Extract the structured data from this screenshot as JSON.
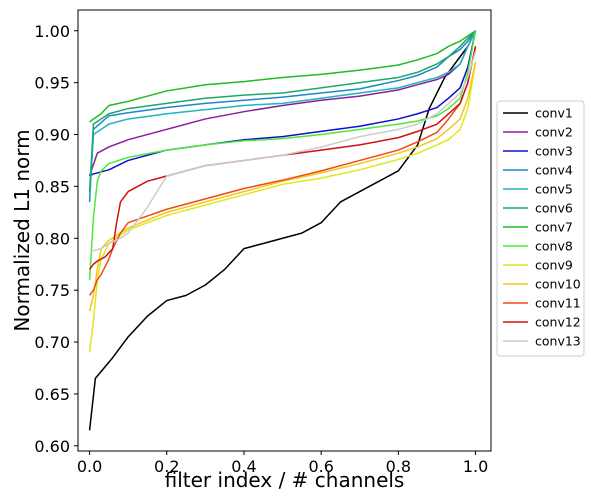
{
  "chart_data": {
    "type": "line",
    "xlabel": "filter index / # channels",
    "ylabel": "Normalized L1 norm",
    "xlim": [
      -0.03,
      1.04
    ],
    "ylim": [
      0.595,
      1.02
    ],
    "xticks": [
      0.0,
      0.2,
      0.4,
      0.6,
      0.8,
      1.0
    ],
    "xtick_labels": [
      "0.0",
      "0.2",
      "0.4",
      "0.6",
      "0.8",
      "1.0"
    ],
    "yticks": [
      0.6,
      0.65,
      0.7,
      0.75,
      0.8,
      0.85,
      0.9,
      0.95,
      1.0
    ],
    "ytick_labels": [
      "0.60",
      "0.65",
      "0.70",
      "0.75",
      "0.80",
      "0.85",
      "0.90",
      "0.95",
      "1.00"
    ],
    "grid": false,
    "legend_position": "right, outside plot",
    "series": [
      {
        "name": "conv1",
        "color": "#000000",
        "x": [
          0.0,
          0.015,
          0.06,
          0.1,
          0.15,
          0.2,
          0.25,
          0.3,
          0.35,
          0.4,
          0.45,
          0.5,
          0.55,
          0.6,
          0.65,
          0.7,
          0.75,
          0.8,
          0.85,
          0.88,
          0.9,
          0.92,
          0.95,
          0.98,
          1.0
        ],
        "y": [
          0.615,
          0.665,
          0.685,
          0.705,
          0.725,
          0.74,
          0.745,
          0.755,
          0.77,
          0.79,
          0.795,
          0.8,
          0.805,
          0.815,
          0.835,
          0.845,
          0.855,
          0.865,
          0.89,
          0.925,
          0.94,
          0.955,
          0.97,
          0.985,
          1.0
        ]
      },
      {
        "name": "conv2",
        "color": "#8a1f9e",
        "x": [
          0.0,
          0.02,
          0.05,
          0.1,
          0.2,
          0.3,
          0.4,
          0.5,
          0.6,
          0.7,
          0.8,
          0.85,
          0.9,
          0.93,
          0.96,
          0.98,
          1.0
        ],
        "y": [
          0.86,
          0.882,
          0.888,
          0.895,
          0.905,
          0.915,
          0.922,
          0.928,
          0.933,
          0.937,
          0.943,
          0.948,
          0.953,
          0.958,
          0.968,
          0.985,
          1.0
        ]
      },
      {
        "name": "conv3",
        "color": "#1010c8",
        "x": [
          0.0,
          0.01,
          0.05,
          0.1,
          0.2,
          0.3,
          0.4,
          0.5,
          0.6,
          0.7,
          0.8,
          0.85,
          0.9,
          0.93,
          0.96,
          0.98,
          1.0
        ],
        "y": [
          0.86,
          0.862,
          0.866,
          0.875,
          0.885,
          0.89,
          0.895,
          0.898,
          0.903,
          0.908,
          0.915,
          0.92,
          0.926,
          0.935,
          0.945,
          0.965,
          1.0
        ]
      },
      {
        "name": "conv4",
        "color": "#1f86c9",
        "x": [
          0.0,
          0.01,
          0.05,
          0.1,
          0.2,
          0.3,
          0.4,
          0.5,
          0.6,
          0.7,
          0.8,
          0.85,
          0.9,
          0.93,
          0.96,
          0.98,
          1.0
        ],
        "y": [
          0.835,
          0.905,
          0.918,
          0.921,
          0.926,
          0.93,
          0.933,
          0.936,
          0.94,
          0.944,
          0.952,
          0.957,
          0.965,
          0.975,
          0.982,
          0.99,
          1.0
        ]
      },
      {
        "name": "conv5",
        "color": "#20b3c0",
        "x": [
          0.0,
          0.01,
          0.05,
          0.1,
          0.2,
          0.3,
          0.4,
          0.5,
          0.6,
          0.7,
          0.8,
          0.85,
          0.9,
          0.93,
          0.96,
          0.98,
          1.0
        ],
        "y": [
          0.84,
          0.9,
          0.91,
          0.915,
          0.92,
          0.924,
          0.928,
          0.93,
          0.935,
          0.94,
          0.945,
          0.95,
          0.955,
          0.96,
          0.968,
          0.985,
          1.0
        ]
      },
      {
        "name": "conv6",
        "color": "#1aa96a",
        "x": [
          0.0,
          0.01,
          0.05,
          0.1,
          0.2,
          0.3,
          0.4,
          0.5,
          0.6,
          0.7,
          0.8,
          0.85,
          0.9,
          0.93,
          0.96,
          0.98,
          1.0
        ],
        "y": [
          0.845,
          0.91,
          0.92,
          0.925,
          0.93,
          0.935,
          0.938,
          0.94,
          0.945,
          0.95,
          0.955,
          0.96,
          0.968,
          0.975,
          0.985,
          0.993,
          1.0
        ]
      },
      {
        "name": "conv7",
        "color": "#22bb22",
        "x": [
          0.0,
          0.01,
          0.03,
          0.05,
          0.1,
          0.2,
          0.3,
          0.4,
          0.5,
          0.6,
          0.7,
          0.8,
          0.85,
          0.9,
          0.93,
          0.96,
          0.98,
          1.0
        ],
        "y": [
          0.912,
          0.915,
          0.92,
          0.928,
          0.932,
          0.942,
          0.948,
          0.951,
          0.955,
          0.958,
          0.962,
          0.967,
          0.972,
          0.978,
          0.985,
          0.99,
          0.995,
          1.0
        ]
      },
      {
        "name": "conv8",
        "color": "#4ce83a",
        "x": [
          0.0,
          0.01,
          0.02,
          0.03,
          0.05,
          0.1,
          0.2,
          0.3,
          0.4,
          0.5,
          0.6,
          0.7,
          0.8,
          0.85,
          0.9,
          0.93,
          0.96,
          0.98,
          1.0
        ],
        "y": [
          0.76,
          0.82,
          0.855,
          0.865,
          0.872,
          0.878,
          0.885,
          0.89,
          0.894,
          0.896,
          0.9,
          0.905,
          0.91,
          0.913,
          0.918,
          0.925,
          0.935,
          0.96,
          1.0
        ]
      },
      {
        "name": "conv9",
        "color": "#dfe81a",
        "x": [
          0.0,
          0.01,
          0.02,
          0.03,
          0.05,
          0.1,
          0.2,
          0.3,
          0.4,
          0.5,
          0.6,
          0.7,
          0.8,
          0.85,
          0.9,
          0.93,
          0.96,
          0.98,
          1.0
        ],
        "y": [
          0.69,
          0.72,
          0.76,
          0.78,
          0.795,
          0.808,
          0.822,
          0.832,
          0.842,
          0.852,
          0.858,
          0.866,
          0.876,
          0.882,
          0.89,
          0.895,
          0.905,
          0.925,
          0.97
        ]
      },
      {
        "name": "conv10",
        "color": "#f5c71c",
        "x": [
          0.0,
          0.01,
          0.02,
          0.03,
          0.05,
          0.1,
          0.2,
          0.3,
          0.4,
          0.5,
          0.6,
          0.7,
          0.8,
          0.85,
          0.9,
          0.93,
          0.96,
          0.98,
          1.0
        ],
        "y": [
          0.73,
          0.745,
          0.77,
          0.79,
          0.798,
          0.81,
          0.825,
          0.835,
          0.845,
          0.855,
          0.863,
          0.872,
          0.882,
          0.888,
          0.896,
          0.905,
          0.915,
          0.935,
          0.97
        ]
      },
      {
        "name": "conv11",
        "color": "#f04a14",
        "x": [
          0.0,
          0.01,
          0.02,
          0.03,
          0.05,
          0.06,
          0.08,
          0.1,
          0.2,
          0.3,
          0.4,
          0.5,
          0.6,
          0.7,
          0.8,
          0.85,
          0.9,
          0.93,
          0.96,
          0.98,
          1.0
        ],
        "y": [
          0.745,
          0.75,
          0.76,
          0.765,
          0.78,
          0.79,
          0.805,
          0.815,
          0.828,
          0.838,
          0.848,
          0.856,
          0.865,
          0.875,
          0.885,
          0.893,
          0.902,
          0.915,
          0.93,
          0.95,
          0.985
        ]
      },
      {
        "name": "conv12",
        "color": "#d01010",
        "x": [
          0.0,
          0.01,
          0.02,
          0.04,
          0.06,
          0.07,
          0.08,
          0.1,
          0.15,
          0.2,
          0.3,
          0.4,
          0.5,
          0.6,
          0.7,
          0.8,
          0.85,
          0.9,
          0.93,
          0.96,
          0.98,
          1.0
        ],
        "y": [
          0.77,
          0.775,
          0.778,
          0.782,
          0.79,
          0.815,
          0.835,
          0.845,
          0.855,
          0.86,
          0.87,
          0.875,
          0.88,
          0.885,
          0.89,
          0.897,
          0.903,
          0.91,
          0.92,
          0.93,
          0.95,
          0.985
        ]
      },
      {
        "name": "conv13",
        "color": "#cccccc",
        "x": [
          0.0,
          0.01,
          0.03,
          0.05,
          0.08,
          0.1,
          0.15,
          0.2,
          0.3,
          0.4,
          0.5,
          0.6,
          0.7,
          0.8,
          0.85,
          0.9,
          0.93,
          0.96,
          0.98,
          1.0
        ],
        "y": [
          0.785,
          0.788,
          0.79,
          0.795,
          0.8,
          0.805,
          0.83,
          0.86,
          0.87,
          0.875,
          0.88,
          0.888,
          0.898,
          0.905,
          0.91,
          0.92,
          0.93,
          0.94,
          0.955,
          0.98
        ]
      }
    ]
  }
}
